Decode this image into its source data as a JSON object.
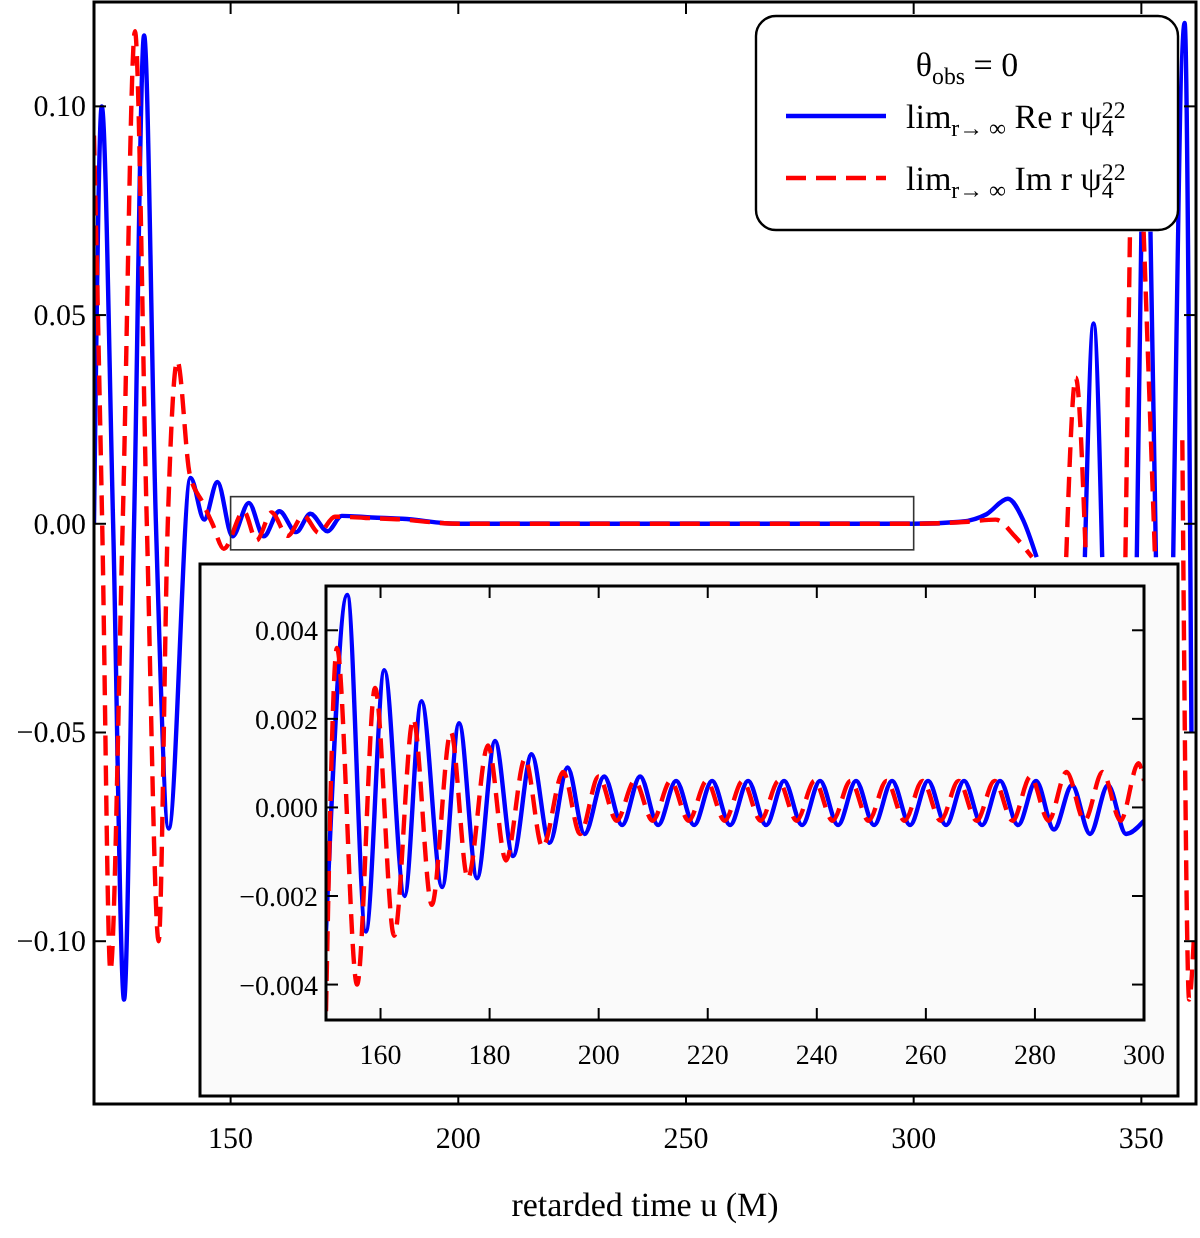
{
  "chart_data": [
    {
      "type": "line",
      "xlabel": "retarded time u (M)",
      "legend": "top right",
      "legend_title": "θ$_{obs}$ = 0",
      "xlim": [
        120,
        362
      ],
      "ylim": [
        -0.139,
        0.125
      ],
      "xticks": [
        150,
        200,
        250,
        300,
        350
      ],
      "yticks": [
        {
          "value": -0.1,
          "label": "−0.10"
        },
        {
          "value": -0.05,
          "label": "−0.05"
        },
        {
          "value": 0,
          "label": "0.00"
        },
        {
          "value": 0.05,
          "label": "0.05"
        },
        {
          "value": 0.1,
          "label": "0.10"
        }
      ],
      "series": [
        {
          "name": "lim$_{r→ ∞}$ Re r ψ$_{4}$$^{22}$",
          "color": "#0000ff",
          "line_style": "solid",
          "x": [
            120,
            121.7,
            124.2,
            126.6,
            128.8,
            131,
            133.6,
            136.4,
            141.2,
            144.2,
            147.1,
            150.4,
            154,
            157.3,
            160.7,
            164.4,
            167.5,
            171.3,
            174.4,
            181,
            187.7,
            200,
            250,
            300,
            310.4,
            316,
            320.7,
            324,
            327,
            330,
            337.6,
            339.5,
            341.4,
            345,
            349,
            350,
            351,
            352,
            353.2,
            355,
            357,
            359.5,
            361
          ],
          "values": [
            0,
            0.1,
            0,
            -0.114,
            0,
            0.117,
            0,
            -0.073,
            0.011,
            0.001,
            0.01,
            -0.003,
            0.005,
            -0.003,
            0.003,
            -0.002,
            0.0024,
            -0.0018,
            0.0019,
            0.0015,
            0.0012,
            0,
            0,
            0,
            0.0005,
            0.0023,
            0.006,
            0.001,
            -0.008,
            null,
            -0.008,
            0.048,
            -0.008,
            null,
            -0.008,
            0.07,
            null,
            0.07,
            -0.008,
            null,
            -0.008,
            0.12,
            -0.05
          ]
        },
        {
          "name": "lim$_{r→ ∞}$ Im r ψ$_{4}$$^{22}$",
          "color": "#ff0000",
          "line_style": "dashed",
          "x": [
            120,
            121.8,
            123.6,
            126.3,
            129,
            131.6,
            134.2,
            136.2,
            138.3,
            141,
            143.9,
            146,
            148.5,
            152.9,
            155.7,
            159,
            162.5,
            166,
            169.4,
            172.9,
            179.7,
            186.5,
            200,
            250,
            300,
            312,
            318,
            322.2,
            326,
            329,
            333.5,
            335.6,
            337.8,
            342,
            346.5,
            347.5,
            348.5,
            350.5,
            353,
            355,
            359,
            360.5,
            361.5
          ],
          "values": [
            0.093,
            0,
            -0.107,
            0,
            0.118,
            0,
            -0.1,
            0,
            0.039,
            0.012,
            0.005,
            0,
            -0.006,
            0.003,
            -0.004,
            0.0027,
            -0.0029,
            0.002,
            -0.0022,
            0.0017,
            0.0014,
            0.0011,
            0,
            0,
            0,
            0.0005,
            0.001,
            -0.003,
            -0.008,
            null,
            -0.008,
            0.035,
            -0.008,
            null,
            -0.008,
            0.07,
            null,
            0.07,
            -0.008,
            null,
            0.02,
            -0.114,
            -0.1
          ]
        }
      ]
    },
    {
      "type": "line",
      "xlim": [
        150,
        300
      ],
      "ylim": [
        -0.0048,
        0.005
      ],
      "xticks": [
        160,
        180,
        200,
        220,
        240,
        260,
        280,
        300
      ],
      "yticks": [
        {
          "value": -0.004,
          "label": "−0.004"
        },
        {
          "value": -0.002,
          "label": "−0.002"
        },
        {
          "value": 0,
          "label": "0.000"
        },
        {
          "value": 0.002,
          "label": "0.002"
        },
        {
          "value": 0.004,
          "label": "0.004"
        }
      ],
      "series": [
        {
          "color": "#0000ff",
          "line_style": "solid",
          "x": [
            150,
            153.9,
            157.3,
            160.7,
            164.4,
            167.5,
            171.3,
            174.4,
            177.7,
            181,
            184.3,
            187.7,
            191,
            194.3,
            197.4,
            201,
            204.3,
            207.6,
            210.9,
            214.2,
            217.5,
            220.8,
            224.1,
            227.4,
            230.7,
            234,
            237.3,
            240.6,
            243.9,
            247.2,
            250.5,
            253.8,
            257.1,
            260.4,
            263.7,
            267,
            270.3,
            273.6,
            276.9,
            280.2,
            283.5,
            286.8,
            290.1,
            293.4,
            296.7,
            300
          ],
          "values": [
            -0.0028,
            0.0048,
            -0.0028,
            0.0031,
            -0.002,
            0.0024,
            -0.0018,
            0.0019,
            -0.0016,
            0.0015,
            -0.0011,
            0.0012,
            -0.0008,
            0.0009,
            -0.0006,
            0.0007,
            -0.0004,
            0.0007,
            -0.0004,
            0.0006,
            -0.0004,
            0.0006,
            -0.0004,
            0.0006,
            -0.0004,
            0.0006,
            -0.0004,
            0.0006,
            -0.0004,
            0.0006,
            -0.0004,
            0.0006,
            -0.0004,
            0.0006,
            -0.0004,
            0.0006,
            -0.0004,
            0.0006,
            -0.0004,
            0.0006,
            -0.0005,
            0.0005,
            -0.0006,
            0.0005,
            -0.0006,
            -0.0003
          ]
        },
        {
          "color": "#ff0000",
          "line_style": "dashed",
          "x": [
            150,
            152,
            155.7,
            159,
            162.5,
            166,
            169.4,
            172.9,
            176,
            179.7,
            183,
            186.5,
            189.7,
            193.5,
            196.6,
            200,
            203.3,
            206.6,
            209.9,
            213.2,
            216.5,
            219.8,
            223.1,
            226.4,
            229.7,
            233,
            236.3,
            239.6,
            242.9,
            246.2,
            249.5,
            252.8,
            256.1,
            259.4,
            262.7,
            266,
            269.3,
            272.6,
            275.9,
            279.2,
            282.5,
            285.8,
            289.1,
            292.4,
            295.7,
            299,
            300
          ],
          "values": [
            -0.0046,
            0.0036,
            -0.004,
            0.0027,
            -0.0029,
            0.002,
            -0.0022,
            0.0017,
            -0.0016,
            0.0014,
            -0.0012,
            0.0011,
            -0.0009,
            0.0008,
            -0.0006,
            0.0007,
            -0.0003,
            0.0006,
            -0.0003,
            0.0006,
            -0.0003,
            0.0006,
            -0.0003,
            0.0006,
            -0.0003,
            0.0006,
            -0.0003,
            0.0006,
            -0.0003,
            0.0006,
            -0.0003,
            0.0006,
            -0.0003,
            0.0006,
            -0.0003,
            0.0006,
            -0.0003,
            0.0006,
            -0.0003,
            0.0007,
            -0.0003,
            0.0008,
            -0.0003,
            0.0008,
            -0.0003,
            0.001,
            0.0006
          ]
        }
      ]
    }
  ]
}
